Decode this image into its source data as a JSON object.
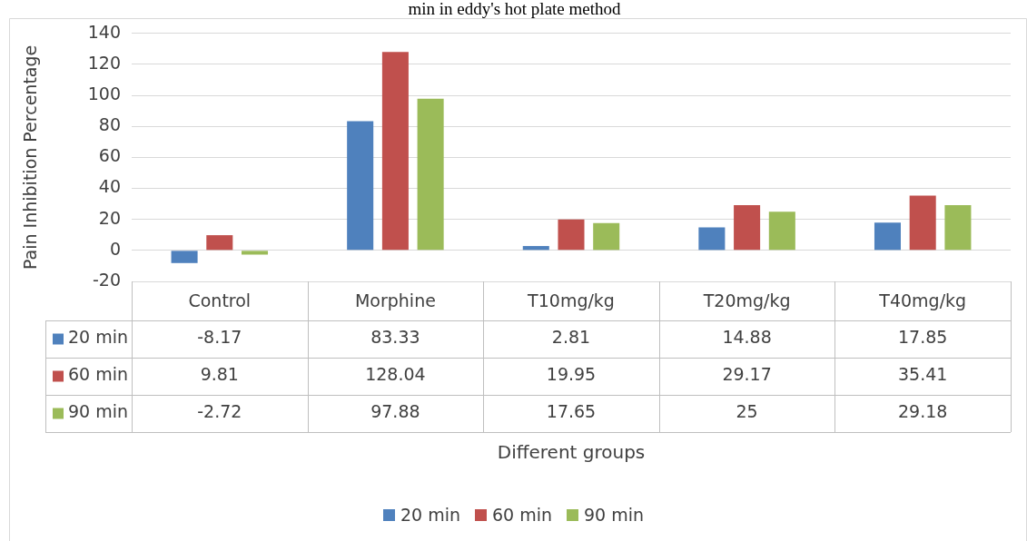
{
  "chart_data": {
    "type": "bar",
    "title": "min in eddy's hot plate method",
    "annotations": [
      "Different groups"
    ],
    "ylabel": "Pain Inhibition Percentage",
    "categories": [
      "Control",
      "Morphine",
      "T10mg/kg",
      "T20mg/kg",
      "T40mg/kg"
    ],
    "series": [
      {
        "name": "20 min",
        "color": "#4f81bd",
        "values": [
          -8.17,
          83.33,
          2.81,
          14.88,
          17.85
        ]
      },
      {
        "name": "60 min",
        "color": "#c0504d",
        "values": [
          9.81,
          128.04,
          19.95,
          29.17,
          35.41
        ]
      },
      {
        "name": "90 min",
        "color": "#9bbb59",
        "values": [
          -2.72,
          97.88,
          17.65,
          25,
          29.18
        ]
      }
    ],
    "ylim": [
      -20,
      140
    ],
    "yticks": [
      -20,
      0,
      20,
      40,
      60,
      80,
      100,
      120,
      140
    ],
    "grid": "y",
    "legend": "bottom",
    "data_labels": true
  }
}
